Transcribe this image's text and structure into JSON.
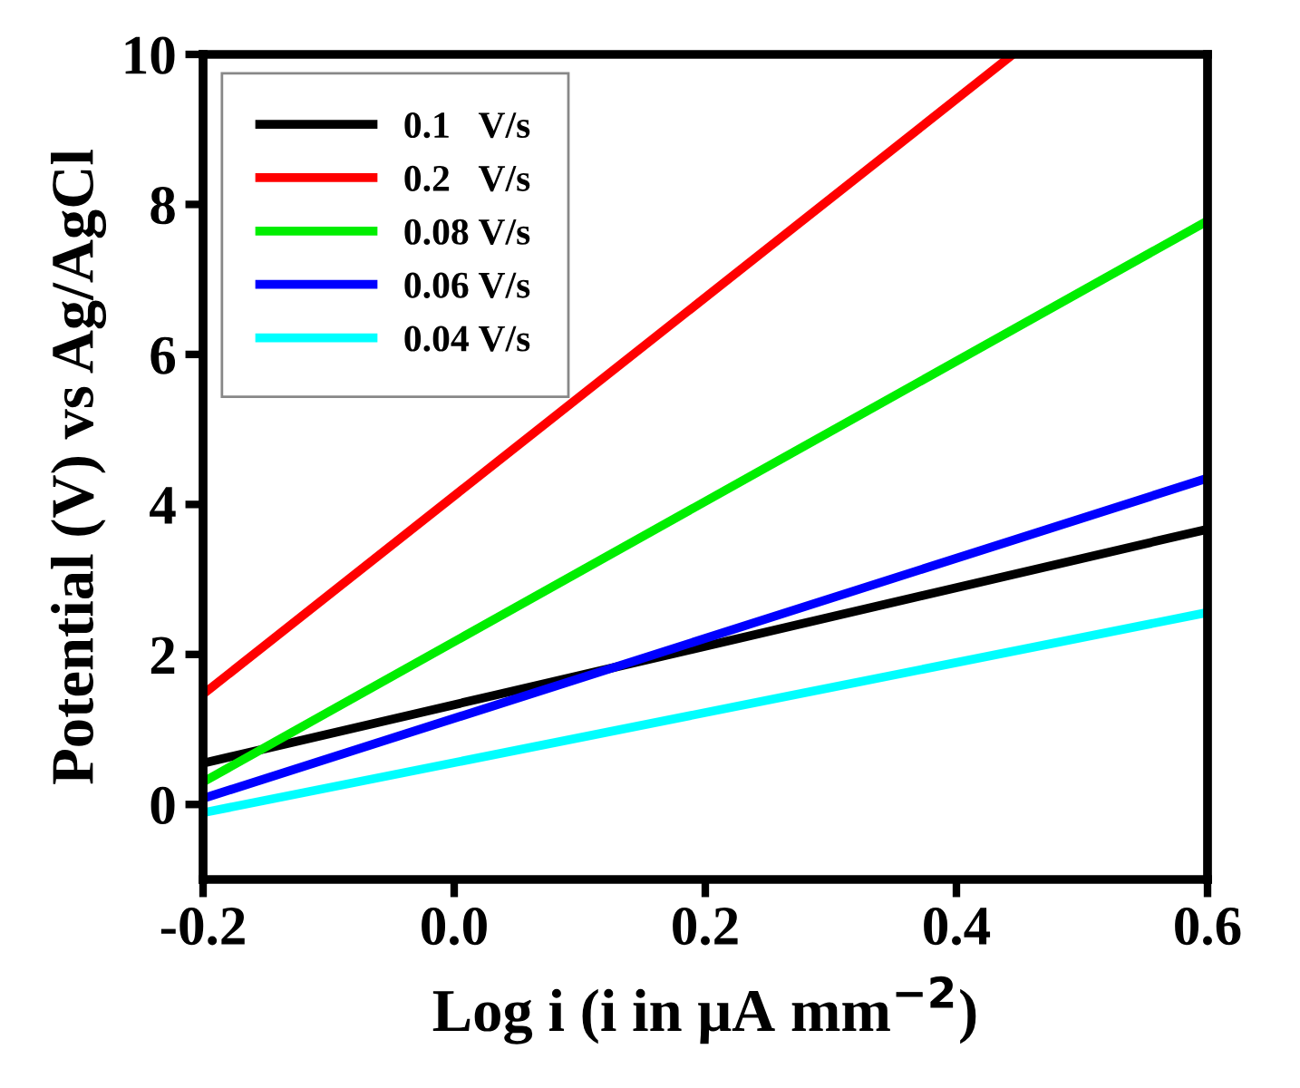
{
  "chart_data": {
    "type": "line",
    "xlabel": "Log i (i in μA mm$^{−2}$)",
    "ylabel": "Potential (V) vs Ag/AgCl",
    "xlim": [
      -0.2,
      0.6
    ],
    "xticks": [
      {
        "value": -0.2,
        "label": "-0.2"
      },
      {
        "value": 0,
        "label": "0.0"
      },
      0.2,
      0.4,
      0.6
    ],
    "ylim": [
      -1,
      10
    ],
    "yticks": [
      0,
      2,
      4,
      6,
      8,
      10
    ],
    "legend": "top left",
    "grid": false,
    "marker": "none",
    "line_style": "solid",
    "series": [
      {
        "name": "0.1   V/s",
        "color": "#000000",
        "x": [
          -0.2,
          0.6
        ],
        "values": [
          0.55,
          3.67
        ]
      },
      {
        "name": "0.2   V/s",
        "color": "#ff0000",
        "x": [
          -0.2,
          0.445
        ],
        "values": [
          1.47,
          10
        ]
      },
      {
        "name": "0.08 V/s",
        "color": "#00ee00",
        "x": [
          -0.2,
          0.6
        ],
        "values": [
          0.3,
          7.78
        ]
      },
      {
        "name": "0.06 V/s",
        "color": "#0000ff",
        "x": [
          -0.2,
          0.6
        ],
        "values": [
          0.08,
          4.35
        ]
      },
      {
        "name": "0.04 V/s",
        "color": "#00ffff",
        "x": [
          -0.2,
          0.6
        ],
        "values": [
          -0.11,
          2.56
        ]
      }
    ]
  }
}
